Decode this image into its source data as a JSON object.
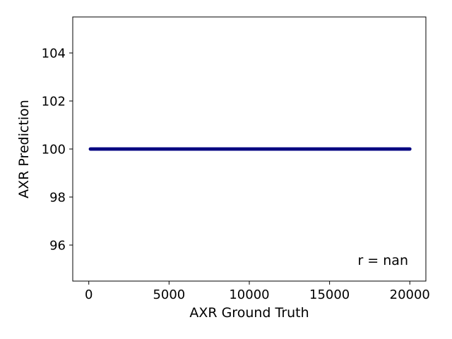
{
  "chart_data": {
    "type": "scatter",
    "xlabel": "AXR Ground Truth",
    "ylabel": "AXR Prediction",
    "xlim": [
      -1000,
      21000
    ],
    "ylim": [
      94.5,
      105.5
    ],
    "xticks": [
      0,
      5000,
      10000,
      15000,
      20000
    ],
    "yticks": [
      96,
      98,
      100,
      102,
      104
    ],
    "point_color": "#000080",
    "series": [
      {
        "x_start": 100,
        "x_end": 20000,
        "x_step": 50,
        "y": 100
      }
    ],
    "annotation": "r = nan",
    "grid": false
  }
}
